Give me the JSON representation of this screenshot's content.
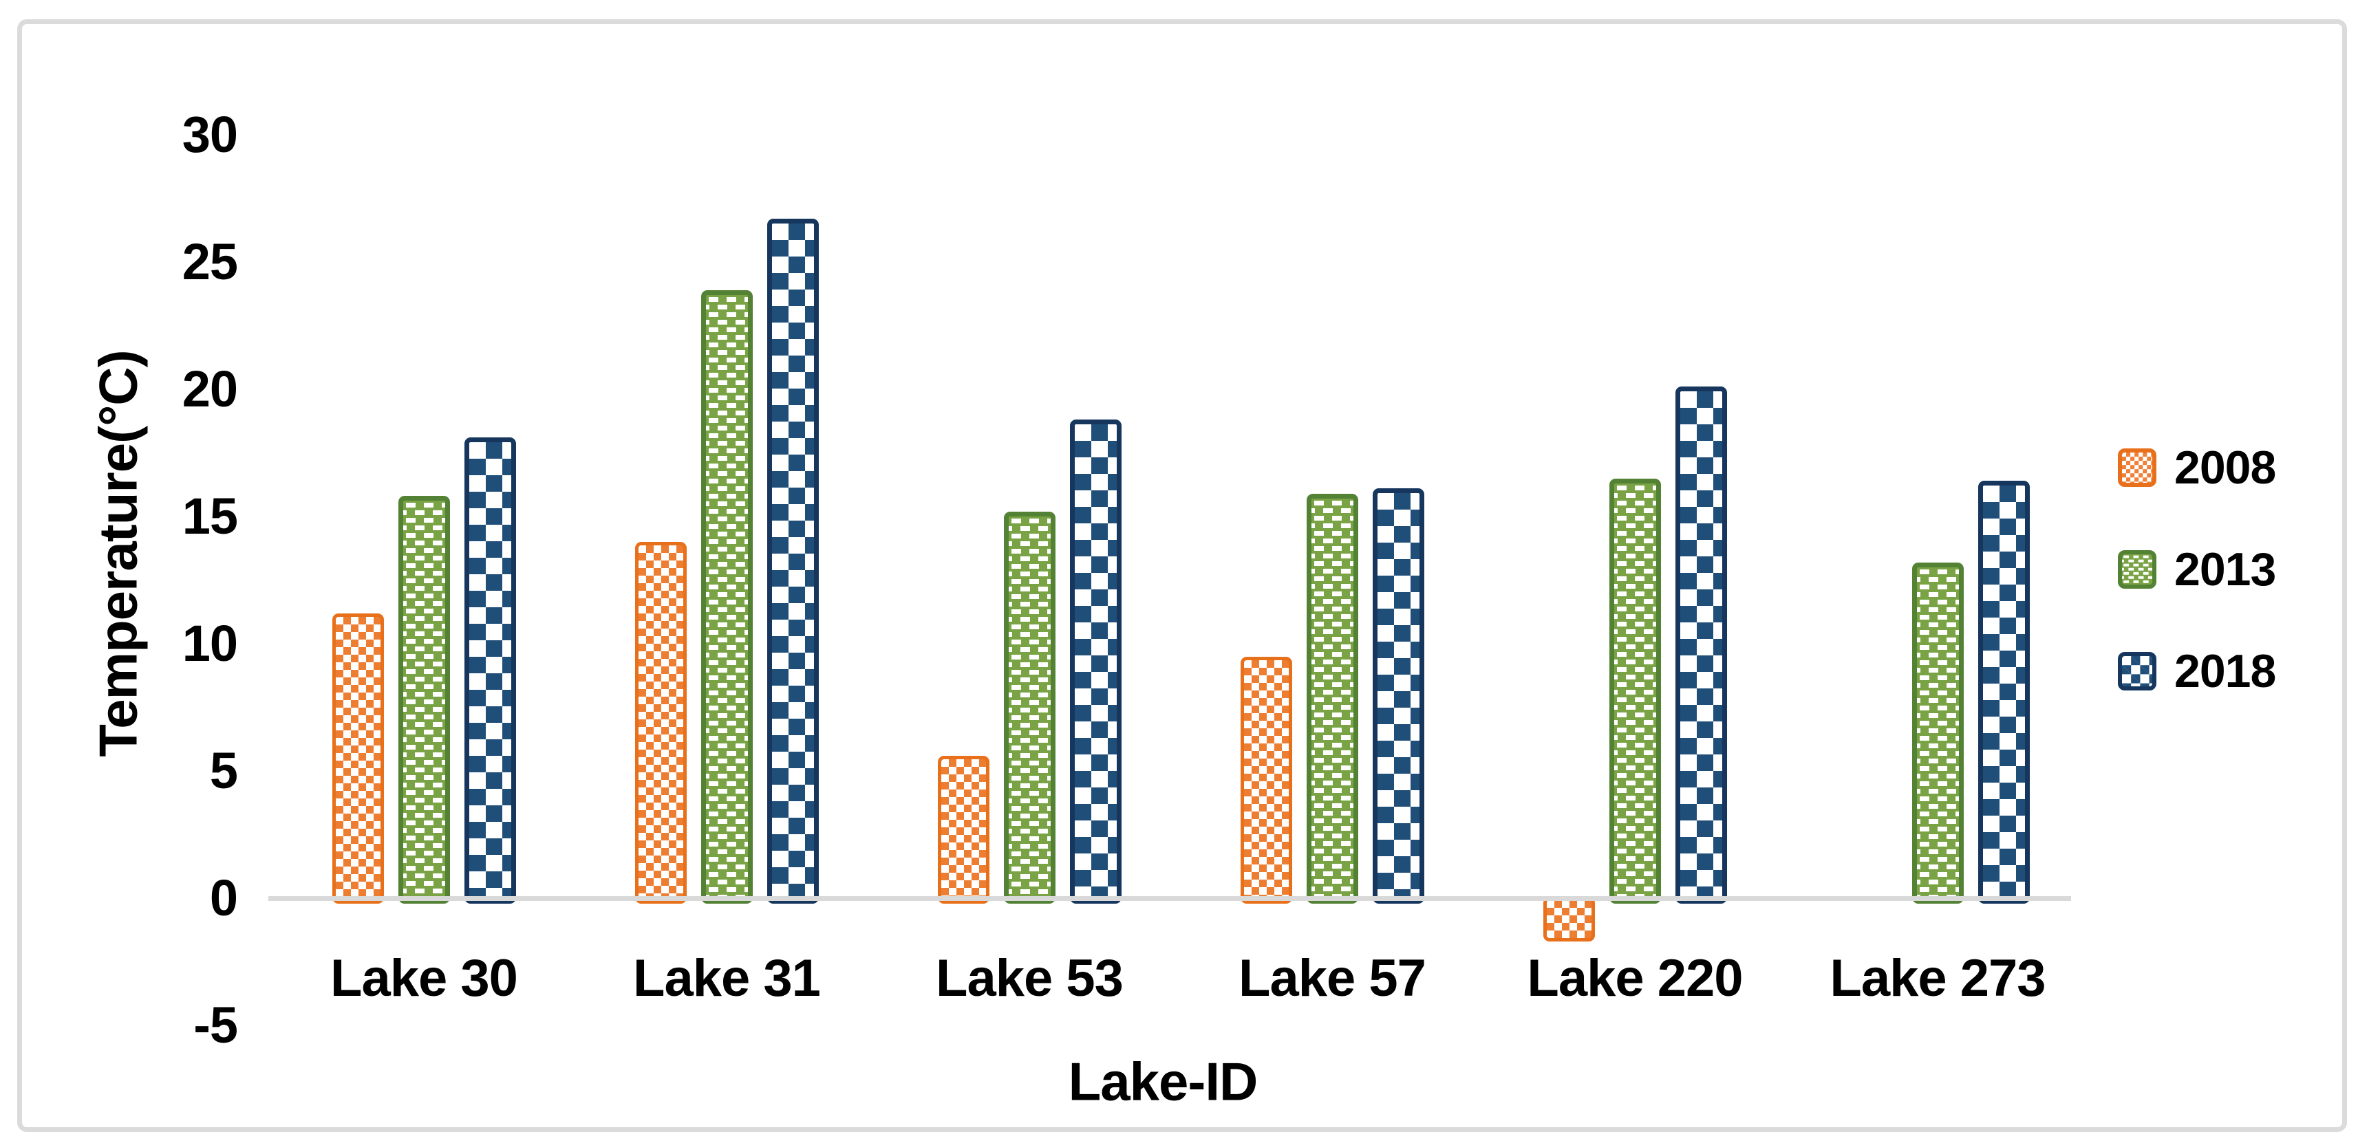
{
  "figure": {
    "background": "#FFFFFF",
    "frame_color": "#DBDBDB",
    "axis_line_color": "#D9D9D9",
    "text_color": "#000000"
  },
  "chart_data": {
    "type": "bar",
    "title": "",
    "xlabel": "Lake-ID",
    "ylabel": "Temperature(°C)",
    "categories": [
      "Lake 30",
      "Lake 31",
      "Lake 53",
      "Lake 57",
      "Lake 220",
      "Lake 273"
    ],
    "series": [
      {
        "name": "2008",
        "pattern": "checker-small",
        "color": "#ED7D31",
        "border_color": "#E8701A",
        "values": [
          11.2,
          14.0,
          5.6,
          9.5,
          -1.7,
          null
        ]
      },
      {
        "name": "2013",
        "pattern": "dash-rows",
        "color": "#79A344",
        "border_color": "#548235",
        "values": [
          15.8,
          23.9,
          15.2,
          15.9,
          16.5,
          13.2
        ]
      },
      {
        "name": "2018",
        "pattern": "checker-large",
        "color": "#1F4E79",
        "border_color": "#16365D",
        "values": [
          18.1,
          26.7,
          18.8,
          16.1,
          20.1,
          16.4
        ]
      }
    ],
    "y_ticks": [
      30,
      25,
      20,
      15,
      10,
      5,
      0,
      -5
    ],
    "ylim": [
      -5,
      32
    ],
    "grid": false,
    "legend_position": "right"
  }
}
